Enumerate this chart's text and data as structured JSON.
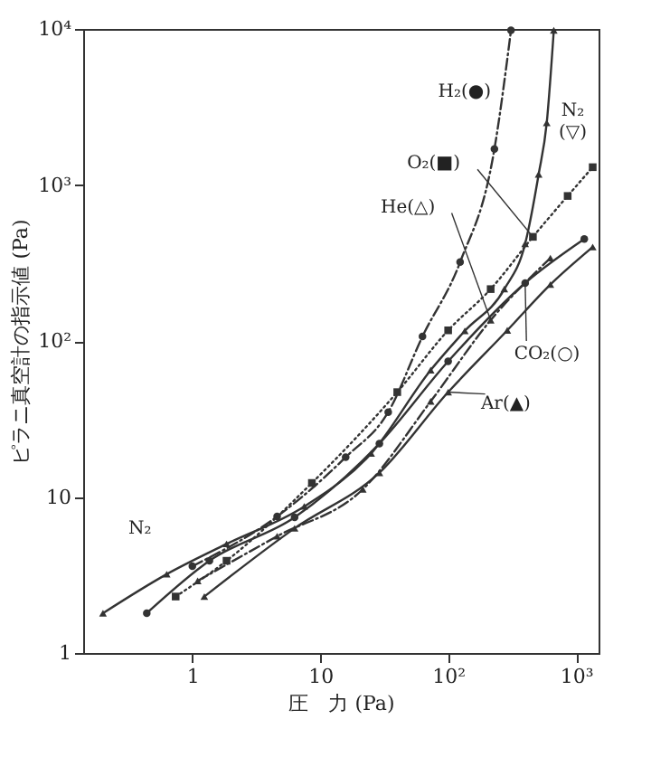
{
  "chart_data": {
    "type": "line",
    "xlabel": "圧　力 (Pa)",
    "ylabel": "ピラニ真空計の指示値 (Pa)",
    "log": "xy",
    "grid": false,
    "xlim": [
      0.14,
      1500
    ],
    "ylim": [
      1,
      10000
    ],
    "xticks": [
      1,
      10,
      {
        "value": 100,
        "label": "10²"
      },
      {
        "value": 1000,
        "label": "10³"
      }
    ],
    "yticks": [
      1,
      10,
      {
        "value": 100,
        "label": "10²"
      },
      {
        "value": 1000,
        "label": "10³"
      },
      {
        "value": 10000,
        "label": "10⁴"
      }
    ],
    "series": [
      {
        "name": "H₂(●)",
        "color": "#333333",
        "line_style": "dashed",
        "marker": "circle",
        "x": [
          1,
          4.6,
          15.8,
          34,
          63,
          124,
          230,
          310
        ],
        "values": [
          3.6,
          7.5,
          18,
          35,
          107,
          320,
          1700,
          9800
        ]
      },
      {
        "name": "N₂\n(▽)",
        "color": "#333333",
        "line_style": "solid",
        "marker": "triangle",
        "x": [
          0.2,
          0.63,
          1.85,
          7.5,
          25,
          73,
          135,
          275,
          400,
          510,
          590,
          670
        ],
        "values": [
          1.8,
          3.2,
          5.0,
          8.7,
          19,
          65,
          116,
          215,
          420,
          1170,
          2500,
          9800
        ]
      },
      {
        "name": "O₂(■)",
        "color": "#333333",
        "line_style": "dotted",
        "marker": "square",
        "x": [
          0.74,
          1.85,
          8.6,
          40,
          100,
          215,
          460,
          860,
          1350
        ],
        "values": [
          2.3,
          3.9,
          12.3,
          47,
          117,
          215,
          465,
          850,
          1300
        ]
      },
      {
        "name": "He(△)",
        "color": "#333333",
        "line_style": "dashed",
        "marker": "triangle",
        "x": [
          1.1,
          4.6,
          21.5,
          73,
          215,
          630
        ],
        "values": [
          2.9,
          5.6,
          11.2,
          41,
          136,
          340
        ]
      },
      {
        "name": "CO₂(○)",
        "color": "#333333",
        "line_style": "solid",
        "marker": "circle",
        "x": [
          0.44,
          1.36,
          6.3,
          29,
          100,
          400,
          1160
        ],
        "values": [
          1.8,
          3.9,
          7.4,
          22,
          74,
          235,
          450
        ]
      },
      {
        "name": "Ar(▲)",
        "color": "#333333",
        "line_style": "solid",
        "marker": "triangle",
        "x": [
          1.24,
          6.3,
          29,
          100,
          290,
          630,
          1350
        ],
        "values": [
          2.3,
          6.3,
          14.3,
          47,
          117,
          230,
          400
        ]
      }
    ],
    "annotations": [
      "N₂"
    ]
  }
}
